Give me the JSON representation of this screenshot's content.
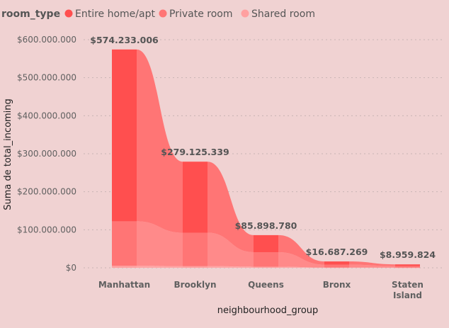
{
  "colors": {
    "background": "#F0D2D2",
    "entire_home": "#FF4F4F",
    "private_room": "#FF7575",
    "shared_room": "#FFA0A0",
    "gridline": "#C8B4B4"
  },
  "chart_data": {
    "type": "bar",
    "subtype": "ribbon-stacked",
    "categories": [
      "Manhattan",
      "Brooklyn",
      "Queens",
      "Bronx",
      "Staten Island"
    ],
    "category_lines": [
      [
        "Manhattan"
      ],
      [
        "Brooklyn"
      ],
      [
        "Queens"
      ],
      [
        "Bronx"
      ],
      [
        "Staten",
        "Island"
      ]
    ],
    "series": [
      {
        "name": "Entire home/apt",
        "color": "#FF4F4F",
        "values": [
          452000000,
          187000000,
          45000000,
          8500000,
          4500000
        ]
      },
      {
        "name": "Private room",
        "color": "#FF7575",
        "values": [
          117000000,
          88000000,
          38000000,
          7500000,
          4000000
        ]
      },
      {
        "name": "Shared room",
        "color": "#FFA0A0",
        "values": [
          5233006,
          4125339,
          2898780,
          687269,
          459824
        ]
      }
    ],
    "totals": [
      574233006,
      279125339,
      85898780,
      16687269,
      8959824
    ],
    "total_labels": [
      "$574.233.006",
      "$279.125.339",
      "$85.898.780",
      "$16.687.269",
      "$8.959.824"
    ],
    "y_ticks": [
      0,
      100000000,
      200000000,
      300000000,
      400000000,
      500000000,
      600000000
    ],
    "y_tick_labels": [
      "$0",
      "$100.000.000",
      "$200.000.000",
      "$300.000.000",
      "$400.000.000",
      "$500.000.000",
      "$600.000.000"
    ],
    "ylim": [
      0,
      600000000
    ],
    "xlabel": "neighbourhood_group",
    "ylabel": "Suma de total_incoming",
    "legend_title": "room_type",
    "legend_position": "top-left",
    "grid": true
  }
}
